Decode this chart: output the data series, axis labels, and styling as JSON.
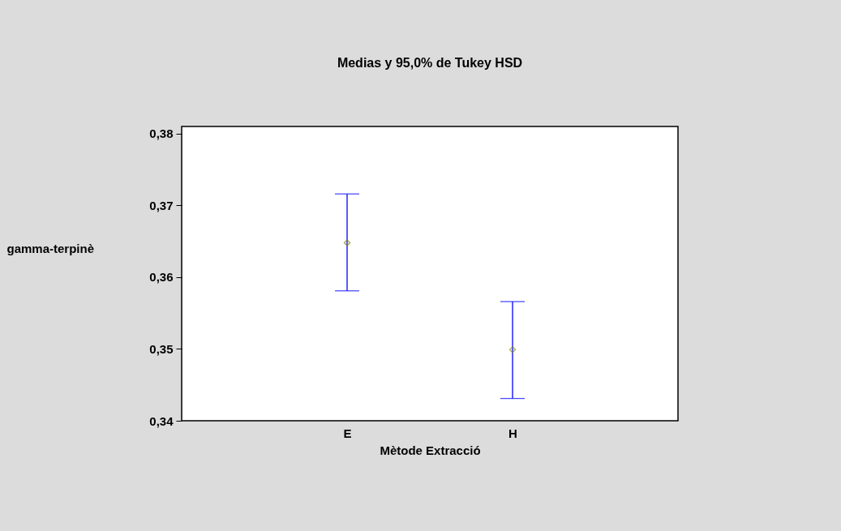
{
  "chart_data": {
    "type": "scatter",
    "title": "Medias y 95,0% de Tukey HSD",
    "xlabel": "Mètode Extracció",
    "ylabel": "gamma-terpinè",
    "categories": [
      "E",
      "H"
    ],
    "series": [
      {
        "color": "#808000",
        "values": [
          0.3648,
          0.3499
        ],
        "errors": [
          [
            0.3581,
            0.3716
          ],
          [
            0.3431,
            0.3566
          ]
        ]
      }
    ],
    "ylim": [
      0.34,
      0.381
    ],
    "yticks": [
      {
        "value": 0.34,
        "label": "0,34"
      },
      {
        "value": 0.35,
        "label": "0,35"
      },
      {
        "value": 0.36,
        "label": "0,36"
      },
      {
        "value": 0.37,
        "label": "0,37"
      },
      {
        "value": 0.38,
        "label": "0,38"
      }
    ],
    "marker": "diamond",
    "grid": false
  }
}
